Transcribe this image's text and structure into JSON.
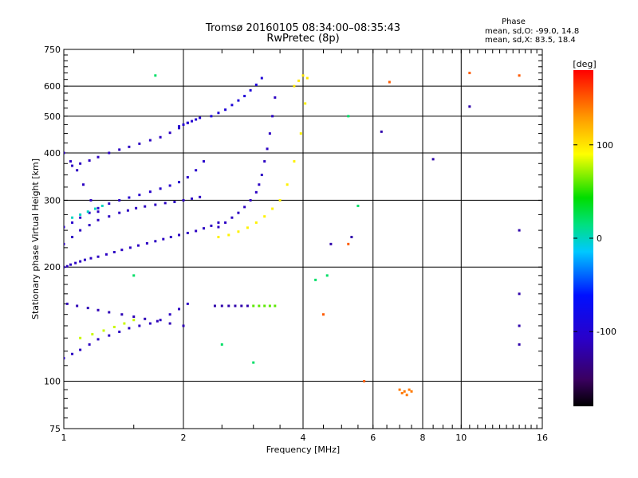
{
  "chart_data": {
    "type": "scatter",
    "title": "Tromsø 20160105 08:34:00–08:35:43",
    "subtitle": "RwPretec (8p)",
    "info_header": "Phase",
    "info_line1": "mean, sd,O: -99.0, 14.8",
    "info_line2": "mean, sd,X:  83.5, 18.4",
    "xlabel": "Frequency [MHz]",
    "ylabel": "Stationary phase Virtual Height [km]",
    "x_scale": "log",
    "y_scale": "log",
    "xlim": [
      1,
      16
    ],
    "ylim": [
      75,
      750
    ],
    "x_ticks": [
      1,
      2,
      4,
      6,
      8,
      10,
      16
    ],
    "x_tick_labels": [
      "1",
      "2",
      "4",
      "6",
      "8",
      "10",
      "16"
    ],
    "x_grid": [
      2,
      4,
      6,
      8,
      10
    ],
    "y_ticks": [
      75,
      100,
      200,
      300,
      400,
      500,
      600,
      750
    ],
    "y_tick_labels": [
      "75",
      "100",
      "200",
      "300",
      "400",
      "500",
      "600",
      "750"
    ],
    "y_grid": [
      100,
      200,
      300,
      400,
      500,
      600
    ],
    "colorbar": {
      "label": "[deg]",
      "range": [
        -180,
        180
      ],
      "ticks": [
        100,
        0,
        -100
      ],
      "tick_labels": [
        "100",
        "0",
        "-100"
      ]
    },
    "grid": true,
    "series": [
      {
        "phase": -110,
        "x": [
          1.0,
          1.02,
          1.04,
          1.07,
          1.1,
          1.13,
          1.17,
          1.22,
          1.28,
          1.34,
          1.4,
          1.47,
          1.54,
          1.62,
          1.7,
          1.78,
          1.86,
          1.95,
          2.05,
          2.15,
          2.25,
          2.35,
          2.45
        ],
        "y": [
          200,
          201,
          203,
          205,
          207,
          209,
          211,
          213,
          216,
          219,
          222,
          225,
          228,
          231,
          234,
          237,
          240,
          243,
          246,
          249,
          253,
          257,
          262
        ]
      },
      {
        "phase": -110,
        "x": [
          1.0,
          1.05,
          1.1,
          1.16,
          1.22,
          1.3,
          1.38,
          1.45,
          1.52,
          1.6,
          1.7,
          1.8,
          1.9,
          2.0,
          2.1,
          2.2
        ],
        "y": [
          230,
          240,
          250,
          258,
          266,
          272,
          278,
          282,
          286,
          289,
          292,
          295,
          297,
          300,
          303,
          306
        ]
      },
      {
        "phase": -105,
        "x": [
          1.0,
          1.05,
          1.1,
          1.16,
          1.22,
          1.3,
          1.38,
          1.46,
          1.55,
          1.65,
          1.75,
          1.85,
          1.95,
          2.05,
          2.15,
          2.25
        ],
        "y": [
          255,
          262,
          270,
          278,
          286,
          294,
          300,
          305,
          310,
          316,
          322,
          328,
          335,
          345,
          360,
          380
        ]
      },
      {
        "phase": -110,
        "x": [
          1.05,
          1.1,
          1.16,
          1.22,
          1.3,
          1.38,
          1.46,
          1.55,
          1.65,
          1.75,
          1.85,
          1.95,
          2.05
        ],
        "y": [
          370,
          375,
          382,
          390,
          400,
          408,
          415,
          423,
          432,
          440,
          452,
          465,
          480
        ]
      },
      {
        "phase": -100,
        "x": [
          1.95,
          2.0,
          2.05,
          2.1,
          2.15,
          2.2
        ],
        "y": [
          470,
          475,
          480,
          485,
          490,
          495
        ]
      },
      {
        "phase": -95,
        "x": [
          2.35,
          2.45,
          2.55,
          2.65,
          2.75,
          2.85,
          2.95,
          3.05,
          3.15
        ],
        "y": [
          500,
          510,
          520,
          535,
          550,
          565,
          585,
          605,
          630
        ]
      },
      {
        "phase": -110,
        "x": [
          1.0,
          1.04,
          1.08,
          1.12,
          1.17,
          1.22
        ],
        "y": [
          400,
          380,
          360,
          330,
          300,
          280
        ]
      },
      {
        "phase": -110,
        "x": [
          2.45,
          2.55,
          2.65,
          2.75,
          2.85,
          2.95,
          3.05,
          3.1,
          3.15,
          3.2,
          3.25,
          3.3,
          3.35,
          3.4
        ],
        "y": [
          255,
          262,
          270,
          278,
          288,
          300,
          315,
          330,
          350,
          380,
          410,
          450,
          500,
          560
        ]
      },
      {
        "phase": 95,
        "x": [
          2.45,
          2.6,
          2.75,
          2.9,
          3.05,
          3.2,
          3.35,
          3.5,
          3.65,
          3.8,
          3.95,
          4.05
        ],
        "y": [
          240,
          243,
          248,
          254,
          262,
          272,
          285,
          300,
          330,
          380,
          450,
          540
        ]
      },
      {
        "phase": 100,
        "x": [
          3.8,
          3.9,
          4.0,
          4.1
        ],
        "y": [
          600,
          620,
          640,
          630
        ]
      },
      {
        "phase": -110,
        "x": [
          1.0,
          1.05,
          1.1,
          1.16,
          1.22,
          1.3,
          1.38,
          1.46,
          1.55,
          1.65,
          1.75,
          1.85,
          1.95,
          2.05
        ],
        "y": [
          115,
          118,
          121,
          125,
          129,
          132,
          135,
          138,
          140,
          142,
          145,
          150,
          155,
          160
        ]
      },
      {
        "phase": -115,
        "x": [
          1.02,
          1.08,
          1.15,
          1.22,
          1.3,
          1.4,
          1.5,
          1.6,
          1.72,
          1.85,
          2.0
        ],
        "y": [
          160,
          158,
          156,
          154,
          152,
          150,
          148,
          146,
          144,
          142,
          140
        ]
      },
      {
        "phase": -120,
        "x": [
          2.4,
          2.5,
          2.6,
          2.7,
          2.8,
          2.9
        ],
        "y": [
          158,
          158,
          158,
          158,
          158,
          158
        ]
      },
      {
        "phase": 60,
        "x": [
          3.0,
          3.1,
          3.2,
          3.3,
          3.4
        ],
        "y": [
          158,
          158,
          158,
          158,
          158
        ]
      },
      {
        "phase": 0,
        "x": [
          1.05,
          1.1,
          1.15,
          1.2,
          1.25
        ],
        "y": [
          270,
          275,
          280,
          285,
          290
        ]
      },
      {
        "phase": 80,
        "x": [
          1.1,
          1.18,
          1.26,
          1.34,
          1.42,
          1.5
        ],
        "y": [
          130,
          133,
          136,
          139,
          142,
          145
        ]
      },
      {
        "phase": 140,
        "x": [
          7.0,
          7.1,
          7.2,
          7.3,
          7.4,
          7.5
        ],
        "y": [
          95,
          93,
          94,
          92,
          95,
          94
        ]
      },
      {
        "phase": 150,
        "x": [
          10.5,
          14.0,
          6.6,
          5.2,
          4.5,
          5.7
        ],
        "y": [
          650,
          640,
          615,
          230,
          150,
          100
        ]
      },
      {
        "phase": -120,
        "x": [
          14.0,
          14.0,
          14.0,
          14.0,
          6.3,
          8.5,
          10.5,
          4.7,
          5.3
        ],
        "y": [
          250,
          170,
          140,
          125,
          455,
          385,
          530,
          230,
          240
        ]
      },
      {
        "phase": 20,
        "x": [
          5.2,
          5.5,
          4.6,
          4.3,
          3.0,
          2.5,
          1.5,
          1.7
        ],
        "y": [
          500,
          290,
          190,
          185,
          112,
          125,
          190,
          640
        ]
      }
    ]
  }
}
